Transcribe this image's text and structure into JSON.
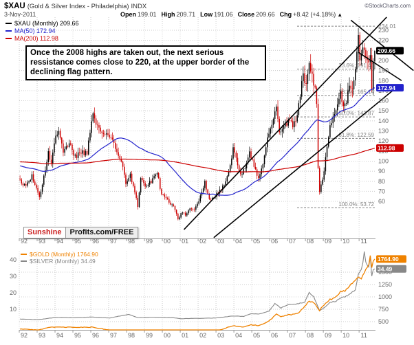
{
  "header": {
    "symbol": "$XAU",
    "name": "(Gold & Silver Index - Philadelphia)",
    "exchange": "INDX",
    "credit": "©StockCharts.com",
    "date": "3-Nov-2011",
    "quote": [
      {
        "label": "Open",
        "value": "199.01"
      },
      {
        "label": "High",
        "value": "209.71"
      },
      {
        "label": "Low",
        "value": "191.06"
      },
      {
        "label": "Close",
        "value": "209.66"
      },
      {
        "label": "Chg",
        "value": "+8.42 (+4.18%)",
        "arrow": "▲"
      }
    ]
  },
  "logo": {
    "left": "Sunshine",
    "right": "Profits.com/FREE"
  },
  "annotation": "Once the 2008 highs are taken out, the next serious ressistance comes close to 220, at the upper border of the declining flag pattern.",
  "colors": {
    "candle_up": "#000000",
    "candle_down": "#cc0000",
    "ma50": "#2222cc",
    "ma200": "#cc0000",
    "gold": "#ef8200",
    "silver": "#888888",
    "grid": "#cccccc",
    "axis_text": "#666666",
    "fib": "#808080",
    "trendline": "#000000"
  },
  "chart_data": [
    {
      "type": "candlestick",
      "title": "$XAU (Monthly)",
      "last_close": 209.66,
      "legend": [
        {
          "label": "$XAU (Monthly) 209.66",
          "color": "#000000"
        },
        {
          "label": "MA(50) 172.94",
          "color": "#2222cc"
        },
        {
          "label": "MA(200) 112.98",
          "color": "#cc0000"
        }
      ],
      "x_tick_labels": [
        "92",
        "93",
        "94",
        "95",
        "96",
        "97",
        "98",
        "99",
        "00",
        "01",
        "02",
        "03",
        "04",
        "05",
        "06",
        "07",
        "08",
        "09",
        "10",
        "11"
      ],
      "y_ticks": [
        230,
        220,
        210,
        200,
        190,
        180,
        170,
        160,
        150,
        140,
        130,
        120,
        110,
        100,
        90,
        80,
        70,
        60
      ],
      "y_axis_top_label": "234.01",
      "current_bar": {
        "open": 199.01,
        "high": 209.71,
        "low": 191.06,
        "close": 209.66
      },
      "fib_levels": [
        {
          "label": "234.01",
          "price": 234.01,
          "placement": "margin"
        },
        {
          "label": "23.6%: 191.46",
          "price": 191.46,
          "placement": "plot"
        },
        {
          "label": "38.2%: 165.14",
          "price": 165.14,
          "placement": "plot"
        },
        {
          "label": "50.0%: 143.87",
          "price": 143.87,
          "placement": "plot"
        },
        {
          "label": "61.8%: 122.59",
          "price": 122.59,
          "placement": "plot"
        },
        {
          "label": "100.0%: 53.72",
          "price": 53.72,
          "placement": "plot"
        }
      ],
      "value_boxes": [
        {
          "text": "209.66",
          "price": 209.66,
          "bg": "#000000"
        },
        {
          "text": "172.94",
          "price": 172.94,
          "bg": "#2222cc"
        },
        {
          "text": "112.98",
          "price": 112.98,
          "bg": "#cc0000"
        }
      ],
      "moving_averages": [
        {
          "period": 50,
          "last": 172.94,
          "color": "#2222cc"
        },
        {
          "period": 200,
          "last": 112.98,
          "color": "#cc0000"
        }
      ],
      "trendlines": [
        {
          "m1": 110,
          "p1": 32,
          "m2": 246,
          "p2": 243
        },
        {
          "m1": 130,
          "p1": 24,
          "m2": 250,
          "p2": 170
        },
        {
          "m1": 222,
          "p1": 240,
          "m2": 264,
          "p2": 190
        },
        {
          "m1": 227,
          "p1": 208,
          "m2": 256,
          "p2": 180
        }
      ],
      "close_anchors": [
        [
          0,
          80
        ],
        [
          4,
          74
        ],
        [
          8,
          86
        ],
        [
          13,
          64
        ],
        [
          17,
          92
        ],
        [
          19,
          108
        ],
        [
          21,
          100
        ],
        [
          23,
          118
        ],
        [
          26,
          131
        ],
        [
          29,
          110
        ],
        [
          33,
          117
        ],
        [
          37,
          104
        ],
        [
          41,
          110
        ],
        [
          45,
          107
        ],
        [
          49,
          150
        ],
        [
          52,
          134
        ],
        [
          57,
          128
        ],
        [
          62,
          120
        ],
        [
          66,
          104
        ],
        [
          69,
          96
        ],
        [
          71,
          76
        ],
        [
          74,
          86
        ],
        [
          77,
          70
        ],
        [
          79,
          55
        ],
        [
          81,
          84
        ],
        [
          84,
          74
        ],
        [
          88,
          80
        ],
        [
          92,
          90
        ],
        [
          95,
          66
        ],
        [
          98,
          64
        ],
        [
          101,
          58
        ],
        [
          104,
          52
        ],
        [
          106,
          42
        ],
        [
          109,
          50
        ],
        [
          111,
          46
        ],
        [
          114,
          54
        ],
        [
          117,
          52
        ],
        [
          120,
          60
        ],
        [
          124,
          79
        ],
        [
          127,
          62
        ],
        [
          130,
          64
        ],
        [
          134,
          70
        ],
        [
          137,
          78
        ],
        [
          140,
          88
        ],
        [
          143,
          112
        ],
        [
          146,
          98
        ],
        [
          148,
          85
        ],
        [
          151,
          94
        ],
        [
          154,
          108
        ],
        [
          157,
          96
        ],
        [
          160,
          82
        ],
        [
          163,
          98
        ],
        [
          167,
          130
        ],
        [
          170,
          140
        ],
        [
          172,
          155
        ],
        [
          174,
          127
        ],
        [
          177,
          133
        ],
        [
          180,
          141
        ],
        [
          183,
          136
        ],
        [
          186,
          146
        ],
        [
          190,
          186
        ],
        [
          192,
          178
        ],
        [
          194,
          199
        ],
        [
          197,
          178
        ],
        [
          199,
          160
        ],
        [
          200,
          92
        ],
        [
          201,
          70
        ],
        [
          202,
          76
        ],
        [
          204,
          90
        ],
        [
          206,
          114
        ],
        [
          208,
          136
        ],
        [
          210,
          142
        ],
        [
          212,
          150
        ],
        [
          215,
          166
        ],
        [
          217,
          152
        ],
        [
          219,
          160
        ],
        [
          221,
          172
        ],
        [
          223,
          168
        ],
        [
          225,
          188
        ],
        [
          227,
          224
        ],
        [
          228,
          202
        ],
        [
          230,
          212
        ],
        [
          232,
          204
        ],
        [
          233,
          198
        ],
        [
          235,
          206
        ],
        [
          236,
          172
        ],
        [
          237,
          199
        ],
        [
          238,
          209.66
        ]
      ],
      "pre_anchors": [
        [
          -200,
          92
        ],
        [
          -170,
          112
        ],
        [
          -150,
          95
        ],
        [
          -120,
          82
        ],
        [
          -95,
          100
        ],
        [
          -70,
          128
        ],
        [
          -50,
          96
        ],
        [
          -30,
          88
        ],
        [
          -15,
          98
        ],
        [
          -1,
          81
        ]
      ]
    },
    {
      "type": "line",
      "legend": [
        {
          "label": "$GOLD (Monthly) 1764.90",
          "color": "#ef8200"
        },
        {
          "label": "$SILVER (Monthly) 34.49",
          "color": "#888888"
        }
      ],
      "x_tick_labels": [
        "92",
        "93",
        "94",
        "95",
        "96",
        "97",
        "98",
        "99",
        "00",
        "01",
        "02",
        "03",
        "04",
        "05",
        "06",
        "07",
        "08",
        "09",
        "10",
        "11"
      ],
      "left_ticks": [
        40,
        30,
        20,
        10
      ],
      "right_ticks": [
        1500,
        1250,
        1000,
        750,
        500
      ],
      "value_boxes": [
        {
          "text": "1764.90",
          "value": 1764.9,
          "scale": "gold",
          "bg": "#ef8200"
        },
        {
          "text": "34.49",
          "value": 34.49,
          "scale": "silver",
          "bg": "#888888"
        }
      ],
      "series": [
        {
          "name": "$GOLD (Monthly)",
          "last": 1764.9,
          "color": "#ef8200",
          "scale": "gold",
          "anchors": [
            [
              0,
              355
            ],
            [
              12,
              330
            ],
            [
              20,
              390
            ],
            [
              36,
              384
            ],
            [
              48,
              388
            ],
            [
              60,
              332
            ],
            [
              71,
              290
            ],
            [
              79,
              273
            ],
            [
              84,
              300
            ],
            [
              95,
              290
            ],
            [
              103,
              273
            ],
            [
              108,
              264
            ],
            [
              119,
              276
            ],
            [
              124,
              325
            ],
            [
              131,
              305
            ],
            [
              143,
              415
            ],
            [
              150,
              390
            ],
            [
              155,
              438
            ],
            [
              160,
              418
            ],
            [
              167,
              513
            ],
            [
              172,
              650
            ],
            [
              175,
              600
            ],
            [
              180,
              635
            ],
            [
              186,
              655
            ],
            [
              191,
              800
            ],
            [
              194,
              920
            ],
            [
              197,
              890
            ],
            [
              201,
              730
            ],
            [
              203,
              820
            ],
            [
              208,
              945
            ],
            [
              212,
              1000
            ],
            [
              215,
              1100
            ],
            [
              218,
              1115
            ],
            [
              222,
              1240
            ],
            [
              227,
              1410
            ],
            [
              229,
              1360
            ],
            [
              232,
              1535
            ],
            [
              234,
              1630
            ],
            [
              235,
              1813
            ],
            [
              236,
              1620
            ],
            [
              237,
              1722
            ],
            [
              238,
              1764.9
            ]
          ]
        },
        {
          "name": "$SILVER (Monthly)",
          "last": 34.49,
          "color": "#888888",
          "scale": "silver",
          "anchors": [
            [
              0,
              4.1
            ],
            [
              12,
              3.7
            ],
            [
              24,
              5.1
            ],
            [
              36,
              4.8
            ],
            [
              48,
              5.3
            ],
            [
              60,
              4.7
            ],
            [
              73,
              6.9
            ],
            [
              79,
              5.0
            ],
            [
              90,
              5.2
            ],
            [
              103,
              4.9
            ],
            [
              108,
              4.3
            ],
            [
              119,
              4.5
            ],
            [
              131,
              4.7
            ],
            [
              143,
              5.9
            ],
            [
              150,
              5.7
            ],
            [
              155,
              7.3
            ],
            [
              160,
              7.0
            ],
            [
              167,
              8.8
            ],
            [
              171,
              13.5
            ],
            [
              172,
              12.9
            ],
            [
              175,
              10.8
            ],
            [
              180,
              12.8
            ],
            [
              186,
              13.2
            ],
            [
              191,
              14.4
            ],
            [
              194,
              20.2
            ],
            [
              197,
              17.5
            ],
            [
              201,
              9.3
            ],
            [
              203,
              10.2
            ],
            [
              208,
              14.2
            ],
            [
              212,
              14.9
            ],
            [
              215,
              16.8
            ],
            [
              218,
              17.5
            ],
            [
              222,
              19.5
            ],
            [
              225,
              22
            ],
            [
              227,
              30.9
            ],
            [
              229,
              34
            ],
            [
              230,
              38
            ],
            [
              231,
              48.5
            ],
            [
              232,
              38.3
            ],
            [
              234,
              35
            ],
            [
              235,
              41.7
            ],
            [
              236,
              30.4
            ],
            [
              237,
              34.3
            ],
            [
              238,
              34.49
            ]
          ]
        }
      ]
    }
  ]
}
